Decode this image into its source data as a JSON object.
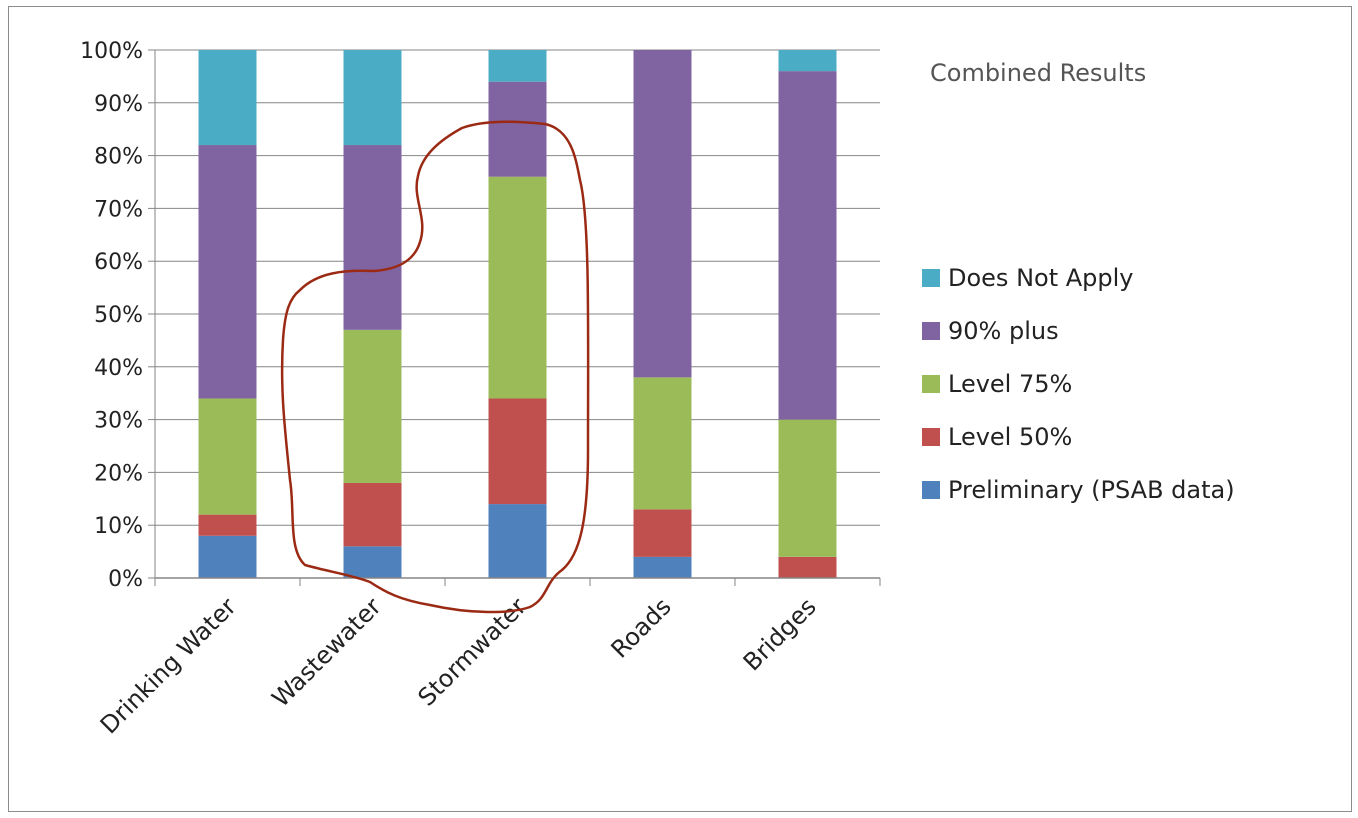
{
  "chart_data": {
    "type": "bar",
    "stacked": true,
    "title": "Combined Results",
    "categories": [
      "Drinking Water",
      "Wastewater",
      "Stormwater",
      "Roads",
      "Bridges"
    ],
    "ylim": [
      0,
      100
    ],
    "y_ticks": [
      "0%",
      "10%",
      "20%",
      "30%",
      "40%",
      "50%",
      "60%",
      "70%",
      "80%",
      "90%",
      "100%"
    ],
    "grid": true,
    "legend_position": "right",
    "series": [
      {
        "name": "Preliminary (PSAB data)",
        "color": "#4f81bd",
        "values": [
          8,
          6,
          14,
          4,
          0
        ]
      },
      {
        "name": "Level 50%",
        "color": "#c0504d",
        "values": [
          4,
          12,
          20,
          9,
          4
        ]
      },
      {
        "name": "Level 75%",
        "color": "#9bbb59",
        "values": [
          22,
          29,
          42,
          25,
          26
        ]
      },
      {
        "name": "90% plus",
        "color": "#8064a2",
        "values": [
          48,
          35,
          18,
          62,
          66
        ]
      },
      {
        "name": "Does Not Apply",
        "color": "#4bacc6",
        "values": [
          18,
          18,
          6,
          0,
          4
        ]
      }
    ],
    "annotation": {
      "type": "hand-drawn outline",
      "color": "#9b2a14",
      "encloses": [
        "Wastewater",
        "Stormwater"
      ]
    }
  }
}
